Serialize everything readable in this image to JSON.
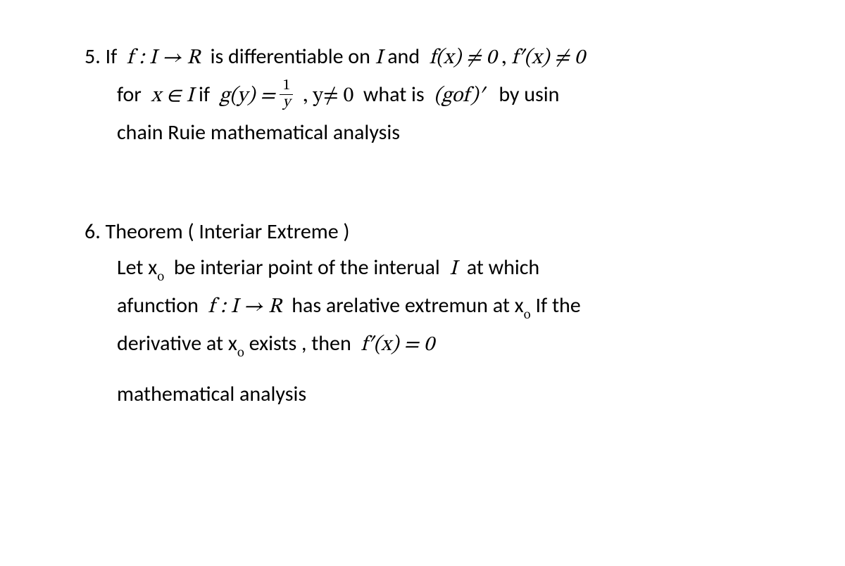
{
  "colors": {
    "text": "#000000",
    "background": "#ffffff"
  },
  "typography": {
    "body_fontsize_pt": 22,
    "family": "Calibri",
    "math_family": "Cambria Math"
  },
  "problems": {
    "p5": {
      "number": "5.",
      "text": {
        "if": "If",
        "map": "f : I → R",
        "diff_on": "is differentiable on",
        "I": "I",
        "and": "and",
        "fx_neq0": "f(x) ≠ 0",
        "comma": ",",
        "fpx_neq0": "f′(x) ≠ 0",
        "for": "for",
        "x_in_I": "x ∈ I",
        "if_lc": "if",
        "gy_eq": "g(y) =",
        "frac_num": "1",
        "frac_den": "y",
        "y_neq0": ", y≠ 0",
        "what_is": "what  is",
        "gof_prime": "(gof)′",
        "by_usin": "by  usin",
        "chain_rule": "chain Ruie   mathematical analysis"
      }
    },
    "p6": {
      "number": "6.",
      "title": "Theorem ( Interiar Extreme )",
      "text": {
        "let": "Let x",
        "sub_o": "o",
        "be_interiar": "be  interiar point of the interual",
        "I": "I",
        "at_which": "at which",
        "afunction": "afunction",
        "map": "f : I → R",
        "has_rel": "has arelative extremun at x",
        "if_the": " If the",
        "derivative_at": "derivative  at x",
        "exists_then": " exists , then",
        "fprime_eq0": "f′(x) = 0"
      },
      "subject": "mathematical analysis"
    }
  }
}
